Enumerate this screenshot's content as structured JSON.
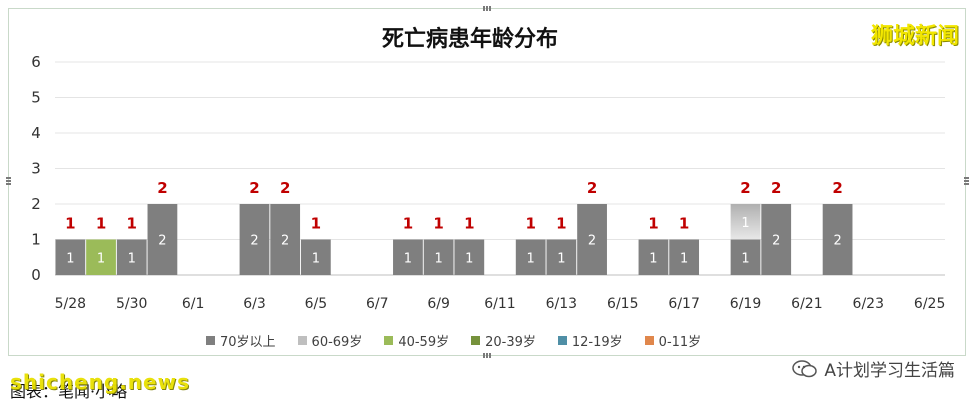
{
  "watermarks": {
    "top_right": "狮城新闻",
    "bottom_left": "shicheng.news"
  },
  "caption": "图表：笔闻·小略",
  "wechat_account": "A计划学习生活篇",
  "colors": {
    "70+": "#7f7f7f",
    "60-69": "#bfbfbf",
    "40-59": "#9bbb59",
    "20-39": "#76923c",
    "12-19": "#4f8fa6",
    "0-11": "#e0874c",
    "total_label": "#c00000"
  },
  "chart_data": {
    "type": "bar",
    "stacked": true,
    "title": "死亡病患年龄分布",
    "ylim": [
      0,
      6
    ],
    "yticks": [
      "0",
      "1",
      "2",
      "3",
      "4",
      "5",
      "6"
    ],
    "grid": true,
    "legend_position": "bottom",
    "categories": [
      "5/28",
      "5/29",
      "5/30",
      "5/31",
      "6/1",
      "6/2",
      "6/3",
      "6/4",
      "6/5",
      "6/6",
      "6/7",
      "6/8",
      "6/9",
      "6/10",
      "6/11",
      "6/12",
      "6/13",
      "6/14",
      "6/15",
      "6/16",
      "6/17",
      "6/18",
      "6/19",
      "6/20",
      "6/21",
      "6/22",
      "6/23",
      "6/24",
      "6/25"
    ],
    "xticklabels": [
      "5/28",
      "5/30",
      "6/1",
      "6/3",
      "6/5",
      "6/7",
      "6/9",
      "6/11",
      "6/13",
      "6/15",
      "6/17",
      "6/19",
      "6/21",
      "6/23",
      "6/25"
    ],
    "series": [
      {
        "name": "70岁以上",
        "color_key": "70+",
        "values": [
          1,
          0,
          1,
          2,
          0,
          0,
          2,
          2,
          1,
          0,
          0,
          1,
          1,
          1,
          0,
          1,
          1,
          2,
          0,
          1,
          1,
          0,
          1,
          2,
          0,
          2,
          0,
          0,
          0
        ]
      },
      {
        "name": "60-69岁",
        "color_key": "60-69",
        "values": [
          0,
          0,
          0,
          0,
          0,
          0,
          0,
          0,
          0,
          0,
          0,
          0,
          0,
          0,
          0,
          0,
          0,
          0,
          0,
          0,
          0,
          0,
          1,
          0,
          0,
          0,
          0,
          0,
          0
        ]
      },
      {
        "name": "40-59岁",
        "color_key": "40-59",
        "values": [
          0,
          1,
          0,
          0,
          0,
          0,
          0,
          0,
          0,
          0,
          0,
          0,
          0,
          0,
          0,
          0,
          0,
          0,
          0,
          0,
          0,
          0,
          0,
          0,
          0,
          0,
          0,
          0,
          0
        ]
      },
      {
        "name": "20-39岁",
        "color_key": "20-39",
        "values": [
          0,
          0,
          0,
          0,
          0,
          0,
          0,
          0,
          0,
          0,
          0,
          0,
          0,
          0,
          0,
          0,
          0,
          0,
          0,
          0,
          0,
          0,
          0,
          0,
          0,
          0,
          0,
          0,
          0
        ]
      },
      {
        "name": "12-19岁",
        "color_key": "12-19",
        "values": [
          0,
          0,
          0,
          0,
          0,
          0,
          0,
          0,
          0,
          0,
          0,
          0,
          0,
          0,
          0,
          0,
          0,
          0,
          0,
          0,
          0,
          0,
          0,
          0,
          0,
          0,
          0,
          0,
          0
        ]
      },
      {
        "name": "0-11岁",
        "color_key": "0-11",
        "values": [
          0,
          0,
          0,
          0,
          0,
          0,
          0,
          0,
          0,
          0,
          0,
          0,
          0,
          0,
          0,
          0,
          0,
          0,
          0,
          0,
          0,
          0,
          0,
          0,
          0,
          0,
          0,
          0,
          0
        ]
      }
    ],
    "totals": [
      1,
      1,
      1,
      2,
      0,
      0,
      2,
      2,
      1,
      0,
      0,
      1,
      1,
      1,
      0,
      1,
      1,
      2,
      0,
      1,
      1,
      0,
      2,
      2,
      0,
      2,
      0,
      0,
      0
    ]
  }
}
